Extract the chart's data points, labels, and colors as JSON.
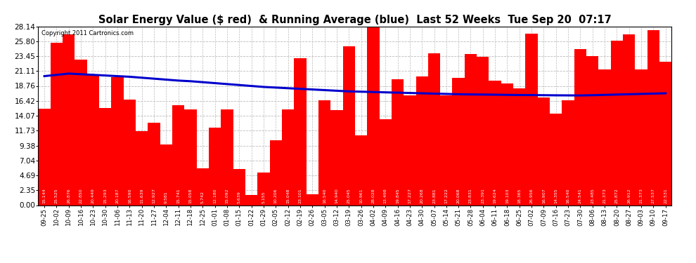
{
  "title": "Solar Energy Value ($ red)  & Running Average (blue)  Last 52 Weeks  Tue Sep 20  07:17",
  "copyright": "Copyright 2011 Cartronics.com",
  "bar_color": "#ff0000",
  "line_color": "#0000cc",
  "background_color": "#ffffff",
  "grid_color": "#bbbbbb",
  "ytick_labels": [
    "0.00",
    "2.35",
    "4.69",
    "7.04",
    "9.38",
    "11.73",
    "14.07",
    "16.42",
    "18.76",
    "21.11",
    "23.45",
    "25.80",
    "28.14"
  ],
  "ytick_values": [
    0.0,
    2.35,
    4.69,
    7.04,
    9.38,
    11.73,
    14.07,
    16.42,
    18.76,
    21.11,
    23.45,
    25.8,
    28.14
  ],
  "dates": [
    "09-25",
    "10-02",
    "10-09",
    "10-16",
    "10-23",
    "10-30",
    "11-06",
    "11-13",
    "11-20",
    "11-27",
    "12-04",
    "12-11",
    "12-18",
    "12-25",
    "01-01",
    "01-08",
    "01-15",
    "01-22",
    "01-29",
    "02-05",
    "02-12",
    "02-19",
    "02-26",
    "03-05",
    "03-12",
    "03-19",
    "03-26",
    "04-02",
    "04-09",
    "04-16",
    "04-23",
    "04-30",
    "05-07",
    "05-14",
    "05-21",
    "05-28",
    "06-04",
    "06-11",
    "06-18",
    "06-25",
    "07-02",
    "07-09",
    "07-16",
    "07-23",
    "07-30",
    "08-06",
    "08-13",
    "08-20",
    "08-27",
    "09-03",
    "09-10",
    "09-17"
  ],
  "values": [
    15.144,
    25.525,
    26.876,
    22.85,
    20.449,
    15.293,
    20.187,
    16.59,
    11.639,
    12.927,
    9.581,
    15.741,
    15.058,
    5.742,
    12.18,
    15.092,
    5.639,
    1.577,
    5.155,
    10.206,
    15.048,
    23.101,
    1.707,
    16.54,
    14.94,
    25.045,
    10.961,
    28.028,
    13.498,
    19.845,
    17.227,
    20.268,
    23.881,
    17.222,
    20.068,
    23.831,
    23.391,
    19.624,
    19.103,
    18.365,
    26.956,
    16.907,
    14.355,
    16.54,
    24.541,
    23.485,
    21.373,
    25.872,
    26.912,
    21.373,
    27.537,
    22.531
  ],
  "running_avg": [
    20.3,
    20.5,
    20.7,
    20.6,
    20.5,
    20.4,
    20.3,
    20.2,
    20.05,
    19.9,
    19.75,
    19.6,
    19.5,
    19.35,
    19.2,
    19.05,
    18.9,
    18.75,
    18.6,
    18.5,
    18.4,
    18.3,
    18.2,
    18.1,
    18.0,
    17.9,
    17.85,
    17.8,
    17.75,
    17.7,
    17.65,
    17.6,
    17.55,
    17.5,
    17.45,
    17.42,
    17.4,
    17.38,
    17.35,
    17.33,
    17.32,
    17.3,
    17.28,
    17.27,
    17.26,
    17.3,
    17.35,
    17.4,
    17.45,
    17.5,
    17.55,
    17.6
  ]
}
